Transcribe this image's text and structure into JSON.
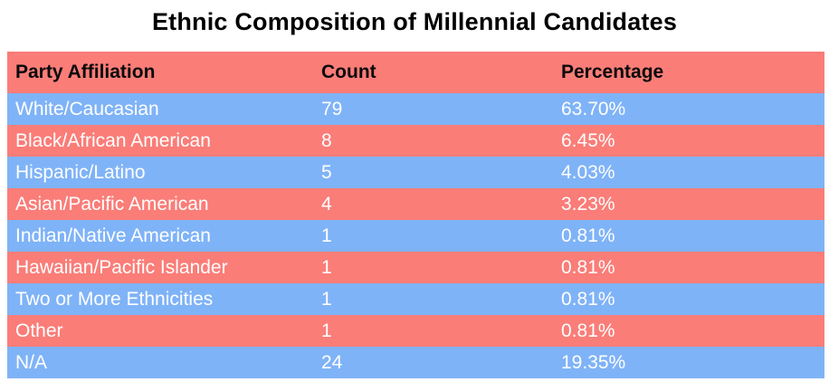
{
  "title": "Ethnic Composition of Millennial Candidates",
  "colors": {
    "salmon": "#FA7D78",
    "blue": "#7FB3F7",
    "header_text": "#0a0a0a",
    "row_text": "#ffffff"
  },
  "table": {
    "columns": {
      "label": "Party Affiliation",
      "count": "Count",
      "percentage": "Percentage"
    },
    "rows": [
      {
        "label": "White/Caucasian",
        "count": "79",
        "percentage": "63.70%"
      },
      {
        "label": "Black/African American",
        "count": "8",
        "percentage": "6.45%"
      },
      {
        "label": "Hispanic/Latino",
        "count": "5",
        "percentage": "4.03%"
      },
      {
        "label": "Asian/Pacific American",
        "count": "4",
        "percentage": "3.23%"
      },
      {
        "label": "Indian/Native American",
        "count": "1",
        "percentage": "0.81%"
      },
      {
        "label": "Hawaiian/Pacific Islander",
        "count": "1",
        "percentage": "0.81%"
      },
      {
        "label": "Two or More Ethnicities",
        "count": "1",
        "percentage": "0.81%"
      },
      {
        "label": "Other",
        "count": "1",
        "percentage": "0.81%"
      },
      {
        "label": "N/A",
        "count": "24",
        "percentage": "19.35%"
      }
    ]
  },
  "chart_data": {
    "type": "table",
    "title": "Ethnic Composition of Millennial Candidates",
    "columns": [
      "Party Affiliation",
      "Count",
      "Percentage"
    ],
    "rows": [
      [
        "White/Caucasian",
        79,
        "63.70%"
      ],
      [
        "Black/African American",
        8,
        "6.45%"
      ],
      [
        "Hispanic/Latino",
        5,
        "4.03%"
      ],
      [
        "Asian/Pacific American",
        4,
        "3.23%"
      ],
      [
        "Indian/Native American",
        1,
        "0.81%"
      ],
      [
        "Hawaiian/Pacific Islander",
        1,
        "0.81%"
      ],
      [
        "Two or More Ethnicities",
        1,
        "0.81%"
      ],
      [
        "Other",
        1,
        "0.81%"
      ],
      [
        "N/A",
        24,
        "19.35%"
      ]
    ]
  }
}
